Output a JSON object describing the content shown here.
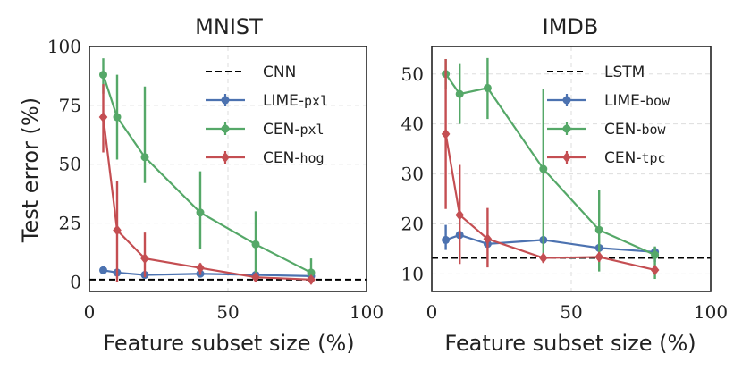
{
  "chart_data": [
    {
      "type": "line",
      "title": "MNIST",
      "xlabel": "Feature subset size (%)",
      "ylabel": "Test error (%)",
      "xlim": [
        0,
        100
      ],
      "ylim": [
        -4,
        100
      ],
      "xticks": [
        0,
        50,
        100
      ],
      "yticks": [
        0,
        25,
        50,
        75,
        100
      ],
      "grid": true,
      "legend_position": "top-right",
      "baseline": {
        "label": "CNN",
        "value": 1,
        "style": "dashed",
        "color": "#000000"
      },
      "series": [
        {
          "name_main": "LIME-",
          "name_mono": "pxl",
          "color": "#4c72b0",
          "marker": "circle",
          "points": [
            {
              "x": 5,
              "y": 5,
              "lo": 5,
              "hi": 5
            },
            {
              "x": 10,
              "y": 4,
              "lo": 4,
              "hi": 4
            },
            {
              "x": 20,
              "y": 3,
              "lo": 3,
              "hi": 3
            },
            {
              "x": 40,
              "y": 3.5,
              "lo": 3.5,
              "hi": 3.5
            },
            {
              "x": 60,
              "y": 3,
              "lo": 3,
              "hi": 3
            },
            {
              "x": 80,
              "y": 2.5,
              "lo": 2.5,
              "hi": 2.5
            }
          ]
        },
        {
          "name_main": "CEN-",
          "name_mono": "pxl",
          "color": "#55a868",
          "marker": "circle",
          "points": [
            {
              "x": 5,
              "y": 88,
              "lo": 80,
              "hi": 95
            },
            {
              "x": 10,
              "y": 70,
              "lo": 52,
              "hi": 88
            },
            {
              "x": 20,
              "y": 53,
              "lo": 42,
              "hi": 83
            },
            {
              "x": 40,
              "y": 29.5,
              "lo": 14,
              "hi": 47
            },
            {
              "x": 60,
              "y": 16,
              "lo": 4,
              "hi": 30
            },
            {
              "x": 80,
              "y": 4,
              "lo": 0,
              "hi": 10
            }
          ]
        },
        {
          "name_main": "CEN-",
          "name_mono": "hog",
          "color": "#c44e52",
          "marker": "diamond",
          "points": [
            {
              "x": 5,
              "y": 70,
              "lo": 55,
              "hi": 84
            },
            {
              "x": 10,
              "y": 22,
              "lo": 0,
              "hi": 43
            },
            {
              "x": 20,
              "y": 10,
              "lo": 2,
              "hi": 21
            },
            {
              "x": 40,
              "y": 6,
              "lo": 3,
              "hi": 8
            },
            {
              "x": 60,
              "y": 2,
              "lo": 1,
              "hi": 3
            },
            {
              "x": 80,
              "y": 1,
              "lo": 0.5,
              "hi": 2
            }
          ]
        }
      ]
    },
    {
      "type": "line",
      "title": "IMDB",
      "xlabel": "Feature subset size (%)",
      "ylabel": "",
      "xlim": [
        0,
        100
      ],
      "ylim": [
        6.5,
        55.5
      ],
      "xticks": [
        0,
        50,
        100
      ],
      "yticks": [
        10,
        20,
        30,
        40,
        50
      ],
      "grid": true,
      "legend_position": "top-right",
      "baseline": {
        "label": "LSTM",
        "value": 13.2,
        "style": "dashed",
        "color": "#000000"
      },
      "series": [
        {
          "name_main": "LIME-",
          "name_mono": "bow",
          "color": "#4c72b0",
          "marker": "circle",
          "points": [
            {
              "x": 5,
              "y": 16.8,
              "lo": 14.8,
              "hi": 19.8
            },
            {
              "x": 10,
              "y": 17.8,
              "lo": 17.3,
              "hi": 18.3
            },
            {
              "x": 20,
              "y": 16,
              "lo": 15.5,
              "hi": 16.5
            },
            {
              "x": 40,
              "y": 16.8,
              "lo": 16.3,
              "hi": 17.3
            },
            {
              "x": 60,
              "y": 15.2,
              "lo": 14.7,
              "hi": 15.7
            },
            {
              "x": 80,
              "y": 14.4,
              "lo": 12.4,
              "hi": 15.3
            }
          ]
        },
        {
          "name_main": "CEN-",
          "name_mono": "bow",
          "color": "#55a868",
          "marker": "circle",
          "points": [
            {
              "x": 5,
              "y": 50,
              "lo": 47,
              "hi": 53
            },
            {
              "x": 10,
              "y": 46,
              "lo": 40,
              "hi": 52
            },
            {
              "x": 20,
              "y": 47.2,
              "lo": 41,
              "hi": 53.2
            },
            {
              "x": 40,
              "y": 31,
              "lo": 13.5,
              "hi": 47
            },
            {
              "x": 60,
              "y": 18.8,
              "lo": 10.5,
              "hi": 26.8
            },
            {
              "x": 80,
              "y": 13.8,
              "lo": 9,
              "hi": 15.5
            }
          ]
        },
        {
          "name_main": "CEN-",
          "name_mono": "tpc",
          "color": "#c44e52",
          "marker": "diamond",
          "points": [
            {
              "x": 5,
              "y": 38,
              "lo": 23,
              "hi": 53
            },
            {
              "x": 10,
              "y": 21.8,
              "lo": 12,
              "hi": 31.8
            },
            {
              "x": 20,
              "y": 17,
              "lo": 11.3,
              "hi": 23.2
            },
            {
              "x": 40,
              "y": 13.2,
              "lo": 12.2,
              "hi": 14.2
            },
            {
              "x": 60,
              "y": 13.4,
              "lo": 12.4,
              "hi": 14.4
            },
            {
              "x": 80,
              "y": 10.8,
              "lo": 10,
              "hi": 11.6
            }
          ]
        }
      ]
    }
  ]
}
